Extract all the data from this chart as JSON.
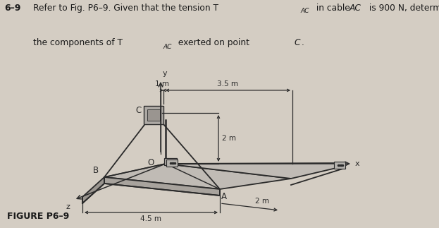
{
  "title_text": "6–9",
  "bg_color": "#d4cdc3",
  "text_color": "#1a1a1a",
  "struct_color": "#2a2a2a",
  "platform_top_color": "#b8b3ac",
  "platform_side_color": "#8a8580",
  "platform_edge_color": "#6a6560",
  "box_color": "#a8a5a0",
  "dim_1": "1 m",
  "dim_35": "3.5 m",
  "dim_2v": "2 m",
  "dim_2h": "2 m",
  "dim_45": "4.5 m",
  "label_C": "C",
  "label_O": "O",
  "label_B": "B",
  "label_A": "A",
  "label_x": "x",
  "label_y": "y",
  "label_z": "z",
  "figure_label": "FIGURE P6–9"
}
